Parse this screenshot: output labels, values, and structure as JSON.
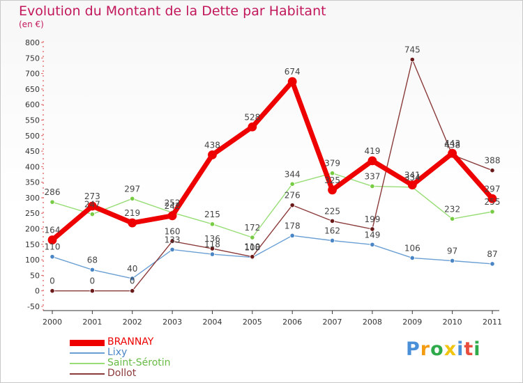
{
  "header": {
    "title": "Evolution du Montant de la Dette par Habitant",
    "unit": "(en €)"
  },
  "brand": {
    "letters": [
      "P",
      "r",
      "o",
      "x",
      "i",
      "t",
      "i"
    ],
    "colors": [
      "#4a90d9",
      "#f39c12",
      "#2eaa4a",
      "#f1c40f",
      "#4a90d9",
      "#e74c3c",
      "#2eaa4a"
    ]
  },
  "chart_data": {
    "type": "line",
    "title": "Evolution du Montant de la Dette par Habitant",
    "ylabel": "(en €)",
    "xlabel": "",
    "x": [
      "2000",
      "2001",
      "2002",
      "2003",
      "2004",
      "2005",
      "2006",
      "2007",
      "2008",
      "2009",
      "2010",
      "2011"
    ],
    "ylim": [
      -50,
      800
    ],
    "yticks": [
      -50,
      0,
      50,
      100,
      150,
      200,
      250,
      300,
      350,
      400,
      450,
      500,
      550,
      600,
      650,
      700,
      750,
      800
    ],
    "grid": false,
    "legend_position": "bottom-left",
    "series": [
      {
        "name": "BRANNAY",
        "color": "#ee0000",
        "point_color": "#ee0000",
        "values": [
          164,
          273,
          219,
          242,
          438,
          528,
          674,
          325,
          419,
          341,
          443,
          297
        ],
        "labels": [
          "164",
          "273",
          "219",
          "242",
          "438",
          "528",
          "674",
          "325",
          "419",
          "341",
          "443",
          "297"
        ]
      },
      {
        "name": "Lixy",
        "color": "#6a9fd4",
        "point_color": "#4a86c6",
        "values": [
          110,
          68,
          40,
          133,
          118,
          108,
          178,
          162,
          149,
          106,
          97,
          87
        ],
        "labels": [
          "110",
          "68",
          "40",
          "133",
          "118",
          "108",
          "178",
          "162",
          "149",
          "106",
          "97",
          "87"
        ]
      },
      {
        "name": "Saint-Sérotin",
        "color": "#99dd77",
        "point_color": "#77cc44",
        "values": [
          286,
          247,
          297,
          252,
          215,
          172,
          344,
          379,
          337,
          334,
          232,
          255
        ],
        "labels": [
          "286",
          "247",
          "297",
          "252",
          "215",
          "172",
          "344",
          "379",
          "337",
          "334",
          "232",
          "255"
        ]
      },
      {
        "name": "Dollot",
        "color": "#8b3a3a",
        "point_color": "#6b1a1a",
        "values": [
          0,
          0,
          0,
          160,
          136,
          110,
          276,
          225,
          199,
          745,
          438,
          388
        ],
        "labels": [
          "0",
          "0",
          "0",
          "160",
          "136",
          "110",
          "276",
          "225",
          "199",
          "745",
          "438",
          "388"
        ]
      }
    ]
  }
}
